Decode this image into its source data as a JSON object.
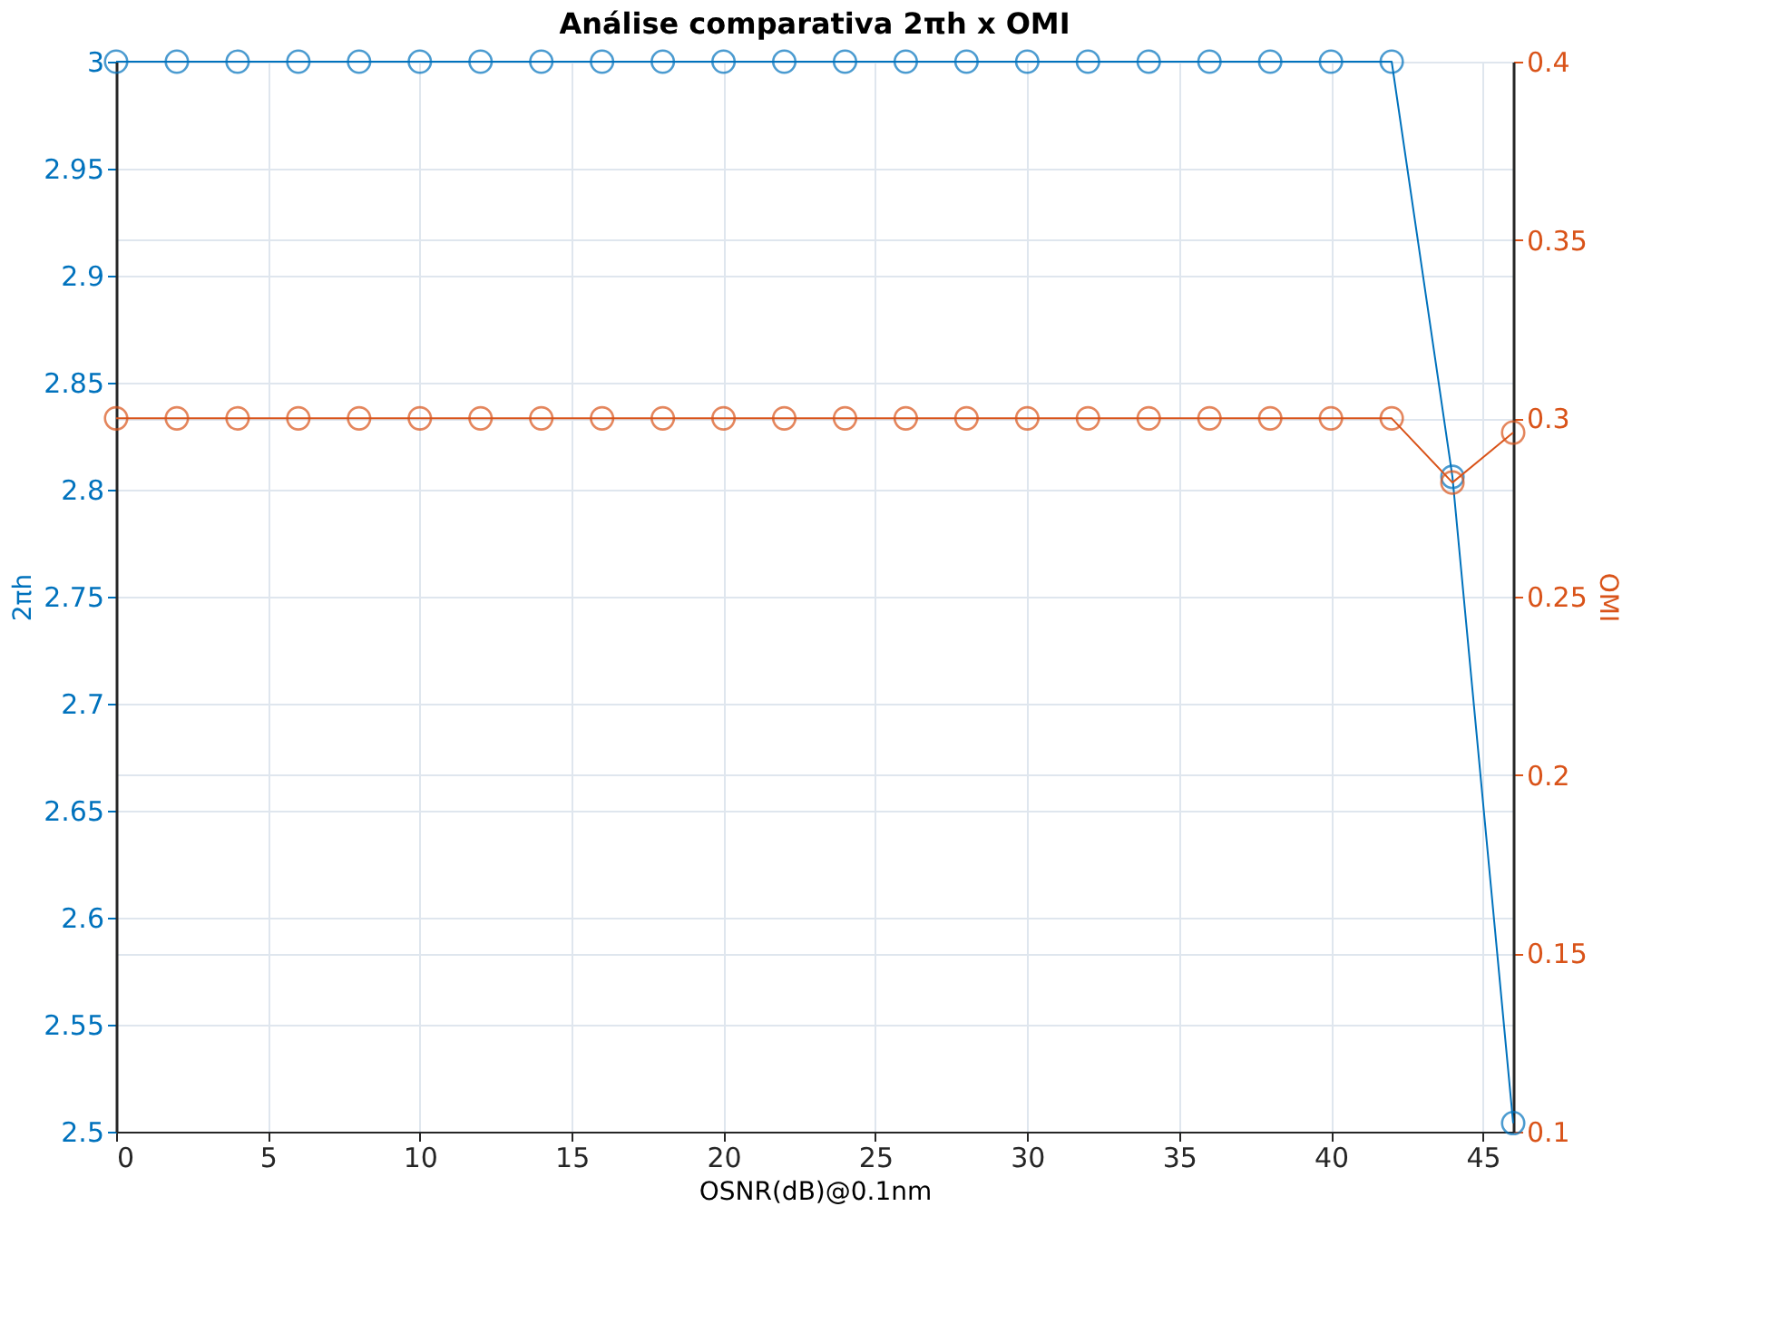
{
  "chart_data": {
    "type": "line",
    "title": "Análise comparativa 2πh x OMI",
    "xlabel": "OSNR(dB)@0.1nm",
    "ylabel": "2πh",
    "y2label": "OMI",
    "x": [
      0,
      2,
      4,
      6,
      8,
      10,
      12,
      14,
      16,
      18,
      20,
      22,
      24,
      26,
      28,
      30,
      32,
      34,
      36,
      38,
      40,
      42,
      44,
      46
    ],
    "series": [
      {
        "color": "#0072bd",
        "values": [
          3,
          3,
          3,
          3,
          3,
          3,
          3,
          3,
          3,
          3,
          3,
          3,
          3,
          3,
          3,
          3,
          3,
          3,
          3,
          3,
          3,
          3,
          2.806,
          2.504
        ]
      },
      {
        "color": "#d95319",
        "axis": "y2",
        "values": [
          0.3,
          0.3,
          0.3,
          0.3,
          0.3,
          0.3,
          0.3,
          0.3,
          0.3,
          0.3,
          0.3,
          0.3,
          0.3,
          0.3,
          0.3,
          0.3,
          0.3,
          0.3,
          0.3,
          0.3,
          0.3,
          0.3,
          0.282,
          0.296
        ]
      }
    ],
    "xlim": [
      0,
      46
    ],
    "xticks": [
      0,
      5,
      10,
      15,
      20,
      25,
      30,
      35,
      40,
      45
    ],
    "ylim": [
      2.5,
      3
    ],
    "yticks": [
      2.5,
      2.55,
      2.6,
      2.65,
      2.7,
      2.75,
      2.8,
      2.85,
      2.9,
      2.95,
      3
    ],
    "y2lim": [
      0.1,
      0.4
    ],
    "y2ticks": [
      0.1,
      0.15,
      0.2,
      0.25,
      0.3,
      0.35,
      0.4
    ],
    "grid": true,
    "marker": "circle",
    "line_style": "solid",
    "legend": false
  }
}
